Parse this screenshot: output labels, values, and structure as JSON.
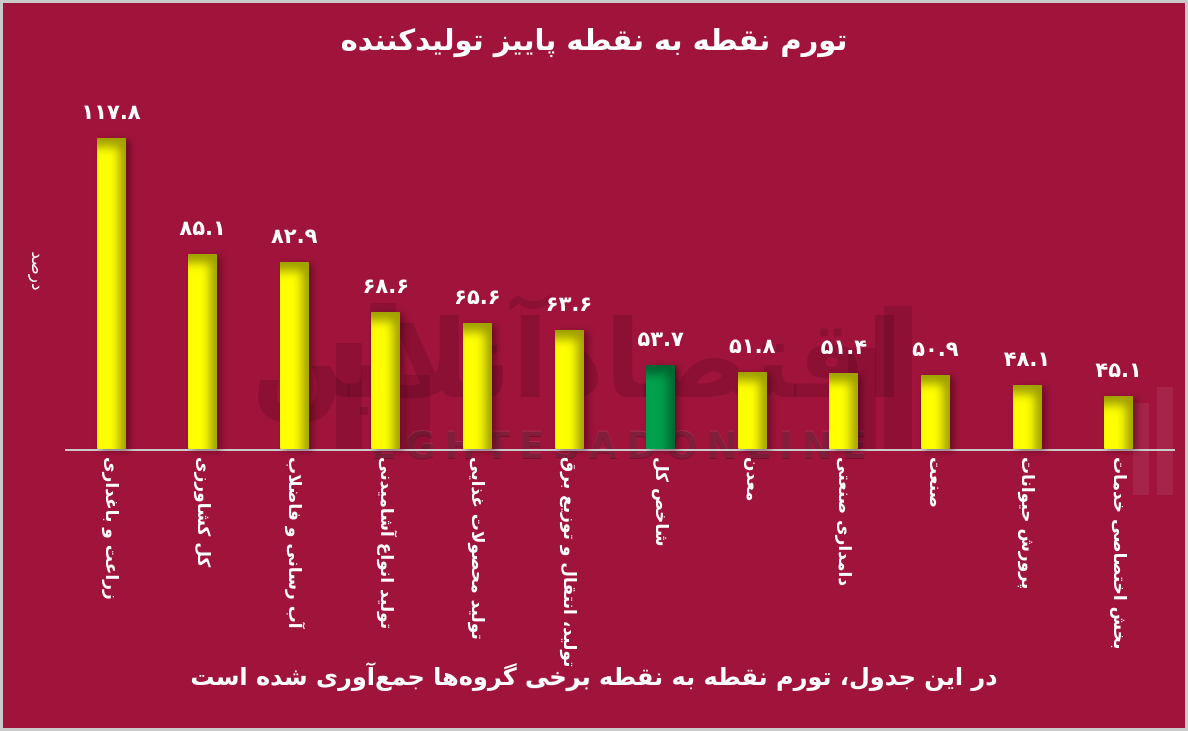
{
  "window": {
    "background": "#A0143C",
    "frame_border_color": "#CACACB",
    "axis_color": "#CACACB",
    "text_color": "#FFFFFF"
  },
  "header": {
    "title": "تورم نقطه به نقطه پاییز تولیدکننده"
  },
  "axis": {
    "y_label": "درصد"
  },
  "footer": {
    "caption_pre": "در این جدول، تورم نقطه به نقطه ",
    "caption_bold": "برخی",
    "caption_post": " گروه‌ها جمع‌آوری شده است"
  },
  "watermark": {
    "fa_logo": "اقتصادآنلاین",
    "en_text": "EGHTESADONLINE"
  },
  "chart_data": {
    "type": "bar",
    "title": "تورم نقطه به نقطه پاییز تولیدکننده",
    "xlabel": "",
    "ylabel": "درصد",
    "grid": false,
    "legend": "none",
    "ylim": [
      30,
      125
    ],
    "categories": [
      "زراعت و باغداری",
      "کل کشاورزی",
      "آب رسانی و فاضلاب",
      "تولید انواع آشامیدنی",
      "تولید محصولات غذایی",
      "تولید، انتقال و توزیع برق",
      "شاخص کل",
      "معدن",
      "دامداری صنعتی",
      "صنعت",
      "پرورش حیوانات",
      "بخش اختصاصی خدمات"
    ],
    "values": [
      117.8,
      85.1,
      82.9,
      68.6,
      65.6,
      63.6,
      53.7,
      51.8,
      51.4,
      50.9,
      48.1,
      45.1
    ],
    "value_labels": [
      "۱۱۷.۸",
      "۸۵.۱",
      "۸۲.۹",
      "۶۸.۶",
      "۶۵.۶",
      "۶۳.۶",
      "۵۳.۷",
      "۵۱.۸",
      "۵۱.۴",
      "۵۰.۹",
      "۴۸.۱",
      "۴۵.۱"
    ],
    "bar_color": "#FFFF00",
    "highlight_index": 6,
    "highlight_color": "#00A04D",
    "value_label_color": "#FFFFFF"
  }
}
